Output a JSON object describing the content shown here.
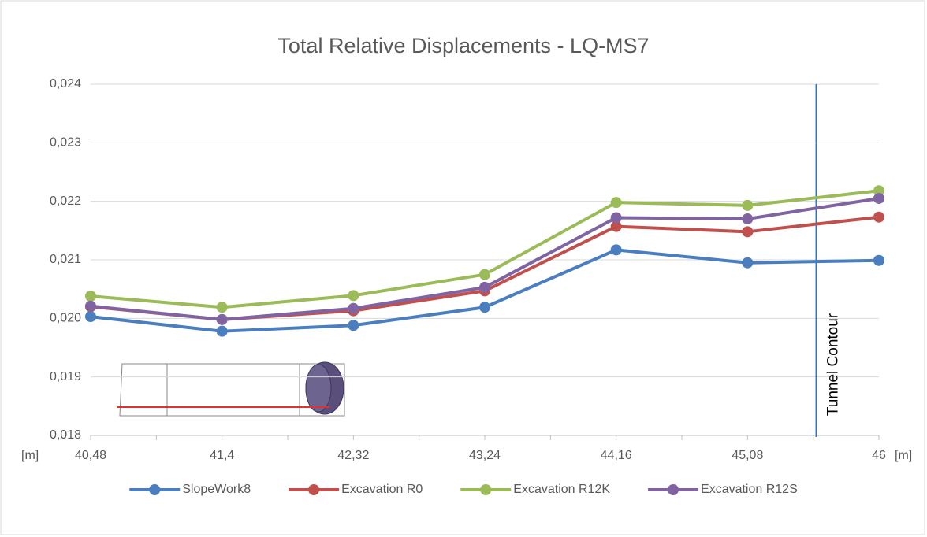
{
  "chart_data": {
    "type": "line",
    "title": "Total Relative Displacements - LQ-MS7",
    "xlabel": "[m]",
    "x": [
      40.48,
      41.4,
      42.32,
      43.24,
      44.16,
      45.08,
      46
    ],
    "xlim": [
      40.48,
      46
    ],
    "xticks": [
      {
        "value": 40.48,
        "label": "40,48"
      },
      {
        "value": 41.4,
        "label": "41,4"
      },
      {
        "value": 42.32,
        "label": "42,32"
      },
      {
        "value": 43.24,
        "label": "43,24"
      },
      {
        "value": 44.16,
        "label": "44,16"
      },
      {
        "value": 45.08,
        "label": "45,08"
      },
      {
        "value": 46,
        "label": "46"
      }
    ],
    "ylim": [
      0.018,
      0.024
    ],
    "yticks": [
      {
        "value": 0.018,
        "label": "0,018"
      },
      {
        "value": 0.019,
        "label": "0,019"
      },
      {
        "value": 0.02,
        "label": "0,020"
      },
      {
        "value": 0.021,
        "label": "0,021"
      },
      {
        "value": 0.022,
        "label": "0,022"
      },
      {
        "value": 0.023,
        "label": "0,023"
      },
      {
        "value": 0.024,
        "label": "0,024"
      }
    ],
    "grid": true,
    "legend": "bottom",
    "annotation": {
      "text": "Tunnel Contour",
      "x": 45.56
    },
    "series": [
      {
        "name": "SlopeWork8",
        "color": "#4a7ebf",
        "values": [
          0.02003,
          0.01978,
          0.01988,
          0.02019,
          0.02117,
          0.02095,
          0.02099
        ]
      },
      {
        "name": "Excavation R0",
        "color": "#c0504d",
        "values": [
          0.0202,
          0.01998,
          0.02013,
          0.02047,
          0.02157,
          0.02148,
          0.02173
        ]
      },
      {
        "name": "Excavation R12K",
        "color": "#9bbb59",
        "values": [
          0.02038,
          0.02019,
          0.02039,
          0.02075,
          0.02198,
          0.02193,
          0.02218
        ]
      },
      {
        "name": "Excavation R12S",
        "color": "#8064a2",
        "values": [
          0.02021,
          0.01998,
          0.02017,
          0.02053,
          0.02172,
          0.0217,
          0.02205
        ]
      }
    ]
  }
}
